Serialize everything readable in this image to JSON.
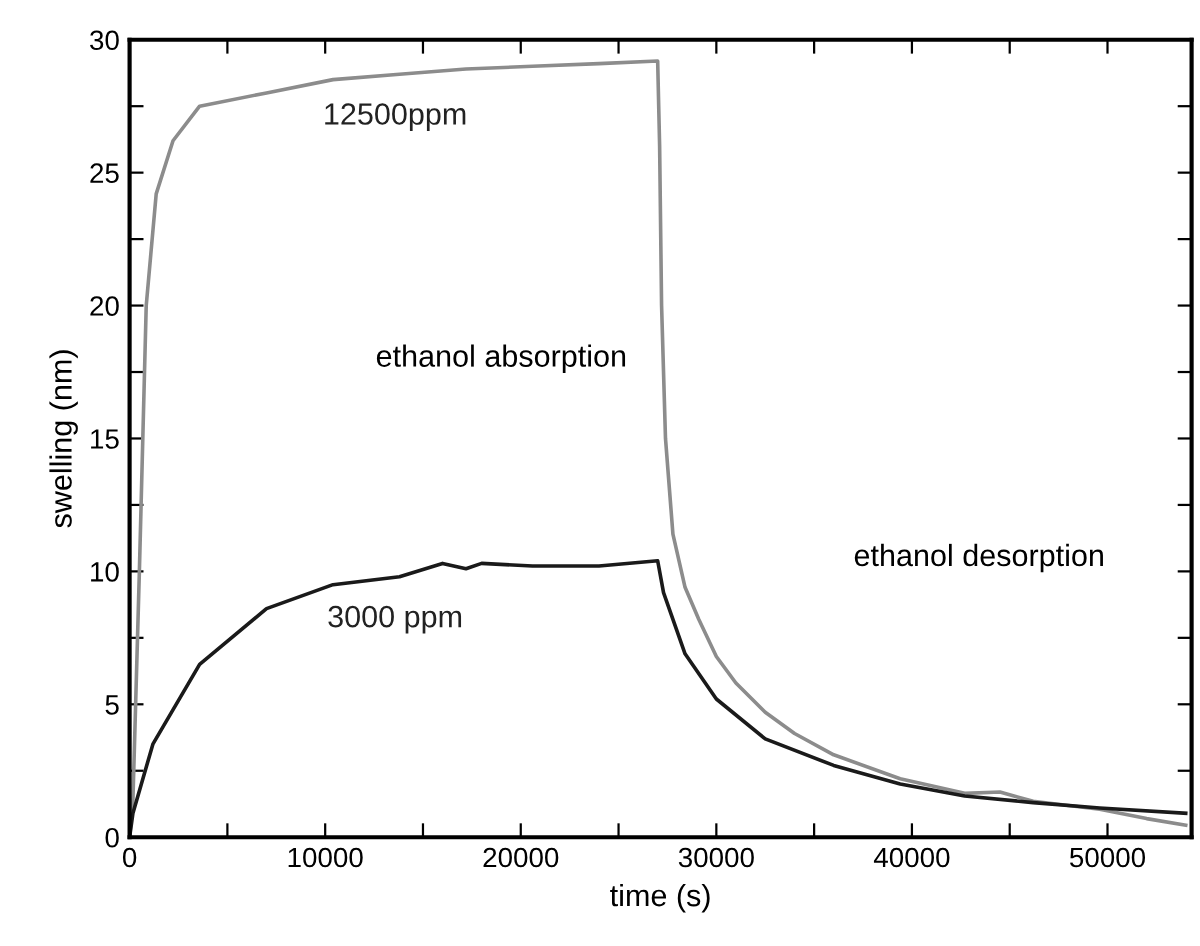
{
  "chart_data": {
    "type": "line",
    "xlabel": "time (s)",
    "ylabel": "swelling (nm)",
    "xlim": [
      0,
      54300
    ],
    "ylim": [
      0,
      30
    ],
    "xticks": [
      0,
      {
        "value": 5000,
        "label": null
      },
      10000,
      {
        "value": 15000,
        "label": null
      },
      20000,
      {
        "value": 25000,
        "label": null
      },
      30000,
      {
        "value": 35000,
        "label": null
      },
      40000,
      {
        "value": 45000,
        "label": null
      },
      50000
    ],
    "yticks": [
      0,
      {
        "value": 2.5,
        "label": null
      },
      5,
      {
        "value": 7.5,
        "label": null
      },
      10,
      {
        "value": 12.5,
        "label": null
      },
      15,
      {
        "value": 17.5,
        "label": null
      },
      20,
      {
        "value": 22.5,
        "label": null
      },
      25,
      {
        "value": 27.5,
        "label": null
      },
      30
    ],
    "grid": false,
    "legend": false,
    "marker": "none",
    "line_style": "solid",
    "annotations": [
      "ethanol absorption",
      "ethanol desorption"
    ],
    "series": [
      {
        "name": "12500ppm",
        "color": "#8c8c8c",
        "x": [
          0,
          170,
          500,
          850,
          1360,
          2220,
          3580,
          7000,
          10400,
          13800,
          17200,
          20600,
          24000,
          27000,
          27100,
          27200,
          27400,
          27780,
          28400,
          29100,
          30000,
          31000,
          32500,
          34000,
          36000,
          39400,
          42700,
          44500,
          46200,
          49600,
          52000,
          54000
        ],
        "values": [
          0,
          1.4,
          10,
          20,
          24.2,
          26.2,
          27.5,
          28.0,
          28.5,
          28.7,
          28.9,
          29.0,
          29.1,
          29.2,
          26,
          20,
          15,
          11.4,
          9.4,
          8.2,
          6.8,
          5.8,
          4.7,
          3.9,
          3.1,
          2.2,
          1.65,
          1.7,
          1.35,
          1.05,
          0.7,
          0.45
        ]
      },
      {
        "name": "3000 ppm",
        "color": "#1a1a1a",
        "x": [
          0,
          170,
          1190,
          3580,
          7000,
          10400,
          13800,
          16000,
          17200,
          18000,
          20600,
          24000,
          27000,
          27300,
          28400,
          30000,
          32500,
          36000,
          39400,
          42700,
          46200,
          49600,
          54000
        ],
        "values": [
          0,
          0.9,
          3.5,
          6.5,
          8.6,
          9.5,
          9.8,
          10.3,
          10.1,
          10.3,
          10.2,
          10.2,
          10.4,
          9.2,
          6.9,
          5.2,
          3.7,
          2.7,
          2.0,
          1.55,
          1.3,
          1.1,
          0.9
        ]
      }
    ]
  }
}
